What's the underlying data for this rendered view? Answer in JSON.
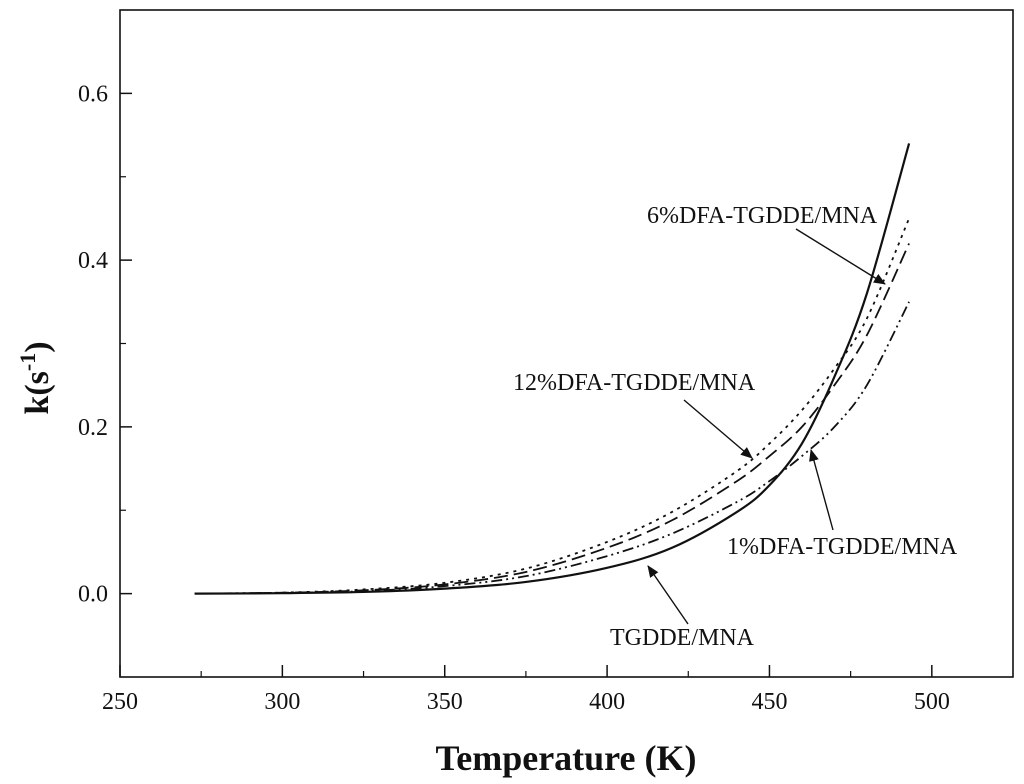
{
  "chart_data": {
    "type": "line",
    "title": "",
    "xlabel": "Temperature (K)",
    "ylabel": {
      "base": "k(s",
      "sup": "-1",
      "close": ")"
    },
    "xlim": [
      250,
      525
    ],
    "ylim": [
      -0.1,
      0.7
    ],
    "xticks": [
      250,
      300,
      350,
      400,
      450,
      500
    ],
    "yticks": [
      0.0,
      0.2,
      0.4,
      0.6
    ],
    "ytick_labels": [
      "0.0",
      "0.2",
      "0.4",
      "0.6"
    ],
    "grid": false,
    "series": [
      {
        "name": "TGDDE/MNA",
        "style": "solid",
        "x": [
          273,
          300,
          325,
          350,
          375,
          400,
          420,
          440,
          450,
          460,
          470,
          480,
          493
        ],
        "y": [
          0.0,
          0.0005,
          0.002,
          0.006,
          0.014,
          0.031,
          0.055,
          0.098,
          0.13,
          0.18,
          0.26,
          0.36,
          0.54
        ]
      },
      {
        "name": "1%DFA-TGDDE/MNA",
        "style": "dash-dot-dot",
        "x": [
          273,
          300,
          325,
          350,
          375,
          400,
          420,
          440,
          450,
          460,
          470,
          480,
          493
        ],
        "y": [
          0.0,
          0.001,
          0.003,
          0.009,
          0.021,
          0.045,
          0.072,
          0.11,
          0.135,
          0.165,
          0.2,
          0.25,
          0.35
        ]
      },
      {
        "name": "6%DFA-TGDDE/MNA",
        "style": "dashed",
        "x": [
          273,
          300,
          325,
          350,
          375,
          400,
          420,
          440,
          450,
          460,
          470,
          480,
          493
        ],
        "y": [
          0.0,
          0.001,
          0.004,
          0.011,
          0.026,
          0.055,
          0.088,
          0.135,
          0.165,
          0.2,
          0.25,
          0.31,
          0.42
        ]
      },
      {
        "name": "12%DFA-TGDDE/MNA",
        "style": "dotted",
        "x": [
          273,
          300,
          325,
          350,
          375,
          400,
          420,
          440,
          450,
          460,
          470,
          480,
          493
        ],
        "y": [
          0.0,
          0.0012,
          0.005,
          0.013,
          0.03,
          0.062,
          0.098,
          0.147,
          0.18,
          0.22,
          0.27,
          0.33,
          0.45
        ]
      }
    ],
    "annotations": [
      {
        "label": "6%DFA-TGDDE/MNA",
        "target": [
          486,
          0.37
        ]
      },
      {
        "label": "12%DFA-TGDDE/MNA",
        "target": [
          444,
          0.155
        ]
      },
      {
        "label": "1%DFA-TGDDE/MNA",
        "target": [
          455,
          0.17
        ]
      },
      {
        "label": "TGDDE/MNA",
        "target": [
          414,
          0.03
        ]
      }
    ]
  }
}
